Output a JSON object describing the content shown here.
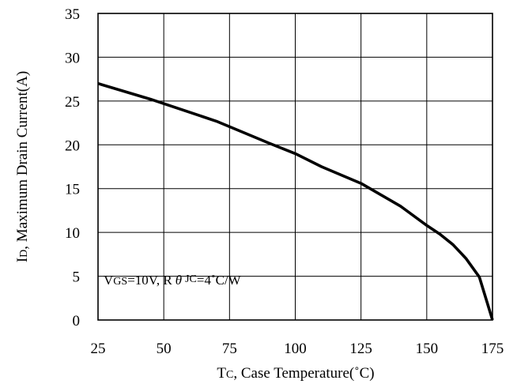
{
  "chart_data": {
    "type": "line",
    "xlabel": {
      "main": "T",
      "sub": "C",
      "rest": ", Case Temperature(˚C)"
    },
    "ylabel": {
      "main": "I",
      "sub": "D",
      "rest": ", Maximum Drain Current(A)"
    },
    "xlim": [
      25,
      175
    ],
    "ylim": [
      0,
      35
    ],
    "xticks": [
      25,
      50,
      75,
      100,
      125,
      150,
      175
    ],
    "yticks": [
      0,
      5,
      10,
      15,
      20,
      25,
      30,
      35
    ],
    "grid": true,
    "annotation": {
      "v": "V",
      "v_sub": "GS",
      "v_rest": "=10V, R",
      "theta": "θ",
      "r_sub": "JC",
      "r_rest": "=4˚C/W"
    },
    "series": [
      {
        "x": [
          25,
          45,
          70,
          90,
          100,
          110,
          125,
          140,
          150,
          155,
          160,
          165,
          170,
          175
        ],
        "y": [
          27,
          25.2,
          22.7,
          20.2,
          19.0,
          17.5,
          15.6,
          13.0,
          10.8,
          9.8,
          8.6,
          7.0,
          4.9,
          0
        ]
      }
    ]
  }
}
